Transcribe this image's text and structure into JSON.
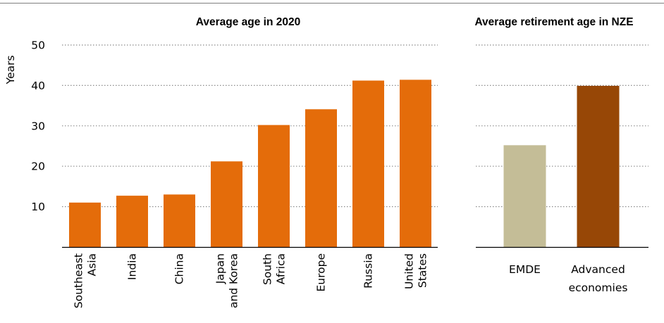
{
  "chart_data": [
    {
      "type": "bar",
      "title": "Average age in 2020",
      "ylabel": "Years",
      "ylim": [
        0,
        50
      ],
      "yticks": [
        10,
        20,
        30,
        40,
        50
      ],
      "grid": "horizontal-dotted",
      "categories": [
        [
          "Southeast",
          "Asia"
        ],
        [
          "India"
        ],
        [
          "China"
        ],
        [
          "Japan",
          "and Korea"
        ],
        [
          "South",
          "Africa"
        ],
        [
          "Europe"
        ],
        [
          "Russia"
        ],
        [
          "United",
          "States"
        ]
      ],
      "values": [
        11,
        12.7,
        13,
        21.2,
        30.2,
        34.1,
        41.2,
        41.4
      ],
      "colors": [
        "#E46C0A"
      ]
    },
    {
      "type": "bar",
      "title": "Average retirement age in NZE",
      "ylim": [
        0,
        50
      ],
      "grid": "horizontal-dotted",
      "categories": [
        [
          "EMDE"
        ],
        [
          "Advanced",
          "economies"
        ]
      ],
      "values": [
        25.2,
        39.9
      ],
      "colors": [
        "#C4BD97",
        "#974706"
      ]
    }
  ]
}
